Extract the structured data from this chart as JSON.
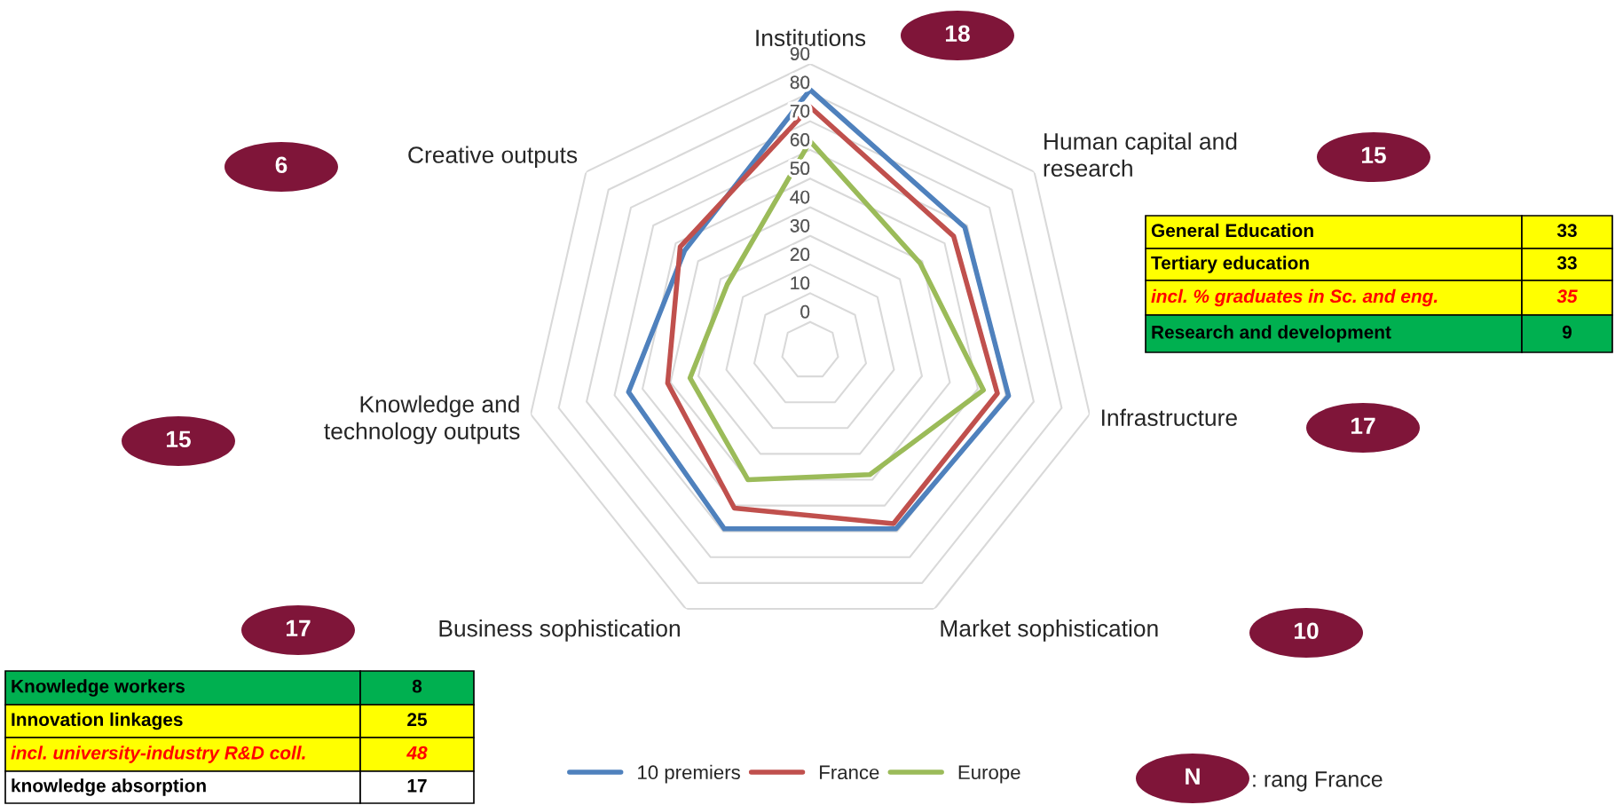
{
  "chart_data": {
    "type": "radar",
    "categories": [
      "Institutions",
      "Human capital and\nresearch",
      "Infrastructure",
      "Market sophistication",
      "Business sophistication",
      "Knowledge and\ntechnology outputs",
      "Creative outputs"
    ],
    "series": [
      {
        "name": "10 premiers",
        "color": "#4f81bd",
        "values": [
          81,
          59,
          61,
          59,
          59,
          55,
          46
        ]
      },
      {
        "name": "France",
        "color": "#c0504d",
        "values": [
          75,
          54,
          57,
          57,
          51,
          41,
          48
        ]
      },
      {
        "name": "Europe",
        "color": "#9bbb59",
        "values": [
          63,
          39,
          52,
          38,
          40,
          33,
          27
        ]
      }
    ],
    "ylim": [
      -10,
      90
    ],
    "yticks": [
      0,
      10,
      20,
      30,
      40,
      50,
      60,
      70,
      80,
      90
    ],
    "grid": true,
    "legend": "bottom",
    "line_style": "solid",
    "marker": "none",
    "annotations": [
      "18",
      "15",
      "17",
      "10",
      "17",
      "15",
      "6",
      "N",
      "General Education",
      "33",
      "Tertiary education",
      "33",
      "incl. % graduates in Sc. and eng.",
      "35",
      "Research and development",
      "9",
      "Knowledge workers",
      "8",
      "Innovation linkages",
      "25",
      "incl. university-industry R&D coll.",
      "48",
      "knowledge absorption",
      "17",
      ": rang France"
    ]
  }
}
